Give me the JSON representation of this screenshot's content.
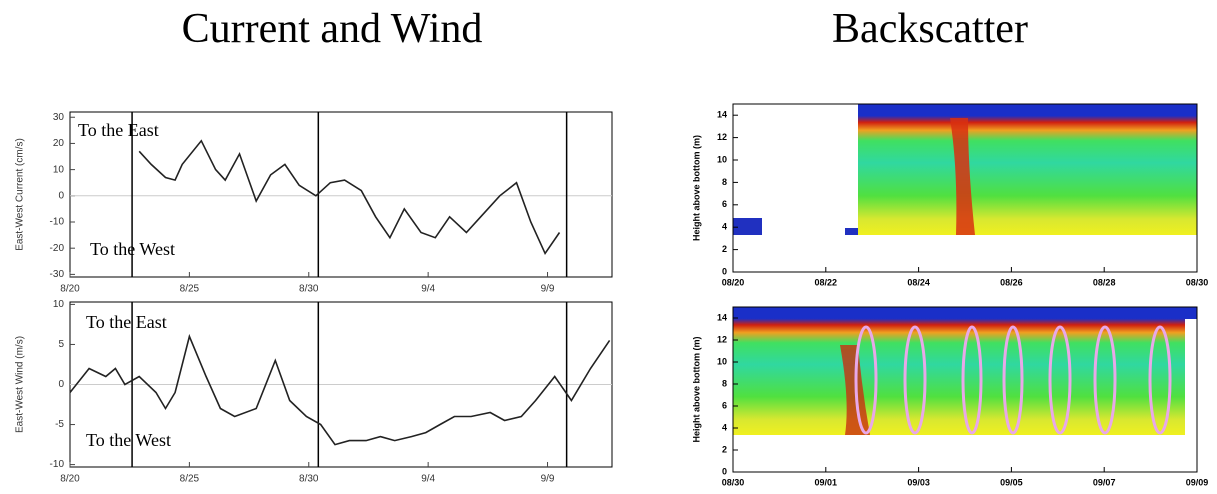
{
  "headings": [
    "Current and Wind",
    "Backscatter"
  ],
  "chart_data": [
    {
      "type": "line",
      "ylabel": "East-West Current (cm/s)",
      "color": "#222222",
      "x": [
        2.9,
        3.4,
        4.0,
        4.4,
        4.7,
        5.5,
        6.1,
        6.5,
        7.1,
        7.8,
        8.4,
        9.0,
        9.6,
        10.3,
        10.9,
        11.5,
        12.2,
        12.8,
        13.4,
        14.0,
        14.7,
        15.3,
        15.9,
        16.6,
        17.2,
        18.0,
        18.7,
        19.3,
        19.9,
        20.5
      ],
      "values": [
        17,
        12,
        7,
        6,
        12,
        21,
        10,
        6,
        16,
        -2,
        8,
        12,
        4,
        0,
        5,
        6,
        2,
        -8,
        -16,
        -5,
        -14,
        -16,
        -8,
        -14,
        -8,
        0,
        5,
        -10,
        -22,
        -14
      ],
      "xlim": [
        0,
        22.7
      ],
      "ylim": [
        -31,
        32
      ],
      "xticks": [
        {
          "value": 0,
          "label": "8/20"
        },
        {
          "value": 5,
          "label": "8/25"
        },
        {
          "value": 10,
          "label": "8/30"
        },
        {
          "value": 15,
          "label": "9/4"
        },
        {
          "value": 20,
          "label": "9/9"
        }
      ],
      "yticks": [
        -30,
        -20,
        -10,
        0,
        10,
        20,
        30
      ],
      "vlines": [
        2.6,
        10.4,
        20.8
      ],
      "annotations": [
        "To the East",
        "To the West"
      ]
    },
    {
      "type": "line",
      "ylabel": "East-West Wind (m/s)",
      "color": "#222222",
      "x": [
        0,
        0.8,
        1.5,
        1.9,
        2.3,
        2.9,
        3.6,
        4.0,
        4.4,
        5.0,
        5.7,
        6.3,
        6.9,
        7.8,
        8.6,
        9.2,
        9.9,
        10.5,
        11.1,
        11.7,
        12.4,
        13.0,
        13.6,
        14.3,
        14.9,
        15.5,
        16.1,
        16.8,
        17.6,
        18.2,
        18.9,
        19.5,
        20.3,
        21.0,
        21.8,
        22.6
      ],
      "values": [
        -1,
        2,
        1,
        2,
        0,
        1,
        -1,
        -3,
        -1,
        6,
        1,
        -3,
        -4,
        -3,
        3,
        -2,
        -4,
        -5,
        -7.5,
        -7,
        -7,
        -6.5,
        -7,
        -6.5,
        -6,
        -5,
        -4,
        -4,
        -3.5,
        -4.5,
        -4,
        -2,
        1,
        -2,
        2,
        5.5
      ],
      "xlim": [
        0,
        22.7
      ],
      "ylim": [
        -10.3,
        10.3
      ],
      "xticks": [
        {
          "value": 0,
          "label": "8/20"
        },
        {
          "value": 5,
          "label": "8/25"
        },
        {
          "value": 10,
          "label": "8/30"
        },
        {
          "value": 15,
          "label": "9/4"
        },
        {
          "value": 20,
          "label": "9/9"
        }
      ],
      "yticks": [
        -10,
        -5,
        0,
        5,
        10
      ],
      "vlines": [
        2.6,
        10.4,
        20.8
      ],
      "annotations": [
        "To the East",
        "To the West"
      ]
    },
    {
      "type": "heatmap",
      "ylabel": "Height above bottom (m)",
      "categories": [
        "08/20",
        "08/22",
        "08/24",
        "08/26",
        "08/28",
        "08/30"
      ],
      "ylim": [
        0,
        15
      ],
      "yticks": [
        0,
        2,
        4,
        6,
        8,
        10,
        12,
        14
      ]
    },
    {
      "type": "heatmap",
      "ylabel": "Height above bottom (m)",
      "categories": [
        "08/30",
        "09/01",
        "09/03",
        "09/05",
        "09/07",
        "09/09"
      ],
      "ylim": [
        0,
        15
      ],
      "yticks": [
        0,
        2,
        4,
        6,
        8,
        10,
        12,
        14
      ]
    }
  ]
}
